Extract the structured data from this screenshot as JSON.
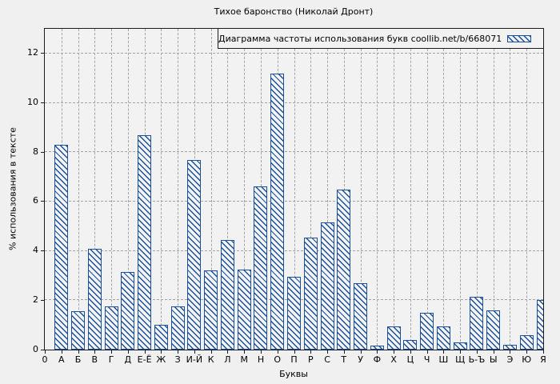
{
  "title": "Тихое баронство (Николай Дронт)",
  "axes": {
    "x_label": "Буквы",
    "y_label": "% использования в тексте"
  },
  "legend": {
    "label": "Диаграмма частоты использования букв coollib.net/b/668071"
  },
  "colors": {
    "bar_blue": "#1a4f9e",
    "background": "#f0f0f0",
    "plot_background": "#f2f2f2",
    "grid": "#a3a3a3",
    "axis_frame": "#1c1c1c"
  },
  "chart_data": {
    "type": "bar",
    "title": "Тихое баронство (Николай Дронт)",
    "xlabel": "Буквы",
    "ylabel": "% использования в тексте",
    "legend_label": "Диаграмма частоты использования букв coollib.net/b/668071",
    "legend_position": "top-right-inside",
    "grid": true,
    "grid_style": "dashed",
    "bar_style": "hatched-diagonal-blue",
    "ylim": [
      0,
      13
    ],
    "yticks": [
      0,
      2,
      4,
      6,
      8,
      10,
      12
    ],
    "categories": [
      "0",
      "А",
      "Б",
      "В",
      "Г",
      "Д",
      "Е-Ё",
      "Ж",
      "З",
      "И-Й",
      "К",
      "Л",
      "М",
      "Н",
      "О",
      "П",
      "Р",
      "С",
      "Т",
      "У",
      "Ф",
      "Х",
      "Ц",
      "Ч",
      "Ш",
      "Щ",
      "Ь-Ъ",
      "Ы",
      "Э",
      "Ю",
      "Я"
    ],
    "values": [
      0,
      8.3,
      1.55,
      4.1,
      1.75,
      3.15,
      8.7,
      1.0,
      1.75,
      7.7,
      3.2,
      4.45,
      3.25,
      6.6,
      11.2,
      2.95,
      4.55,
      5.15,
      6.5,
      2.7,
      0.15,
      0.95,
      0.4,
      1.5,
      0.95,
      0.3,
      2.15,
      1.6,
      0.2,
      0.6,
      2.0
    ]
  }
}
